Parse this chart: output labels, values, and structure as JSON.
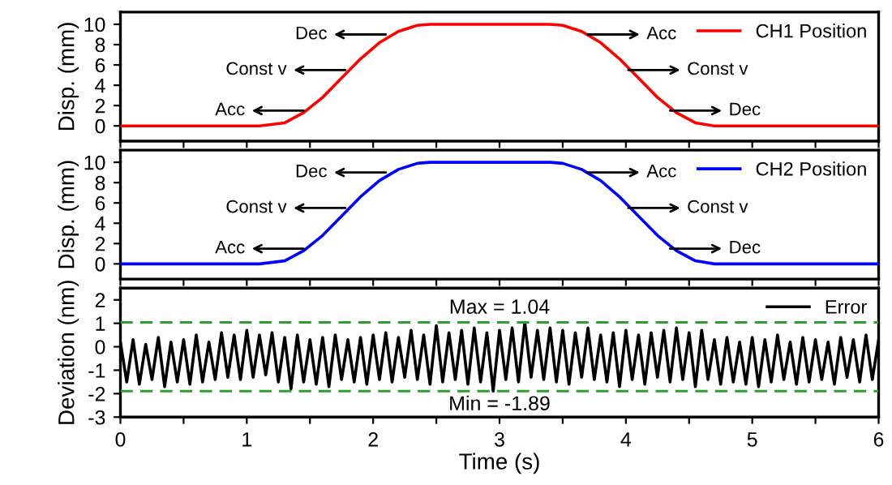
{
  "chart_data": [
    {
      "type": "line",
      "ylabel": "Disp. (mm)",
      "xlim": [
        0,
        6
      ],
      "ylim": [
        -1.5,
        11.2
      ],
      "yticks": [
        0,
        2,
        4,
        6,
        8,
        10
      ],
      "xticks": [
        0,
        {
          "value": 0.5,
          "label": null
        },
        1,
        {
          "value": 1.5,
          "label": null
        },
        2,
        {
          "value": 2.5,
          "label": null
        },
        3,
        {
          "value": 3.5,
          "label": null
        },
        4,
        {
          "value": 4.5,
          "label": null
        },
        5,
        {
          "value": 5.5,
          "label": null
        },
        6
      ],
      "tick_labels": "y",
      "legend": "top right",
      "grid": false,
      "marker": "none",
      "line_style": "solid",
      "series": [
        {
          "name": "CH1 Position",
          "color": "#ff0000",
          "x": [
            0,
            1.1,
            1.3,
            1.45,
            1.6,
            1.75,
            1.9,
            2.05,
            2.2,
            2.35,
            2.45,
            3.4,
            3.5,
            3.65,
            3.8,
            3.95,
            4.1,
            4.25,
            4.4,
            4.55,
            4.7,
            6
          ],
          "values": [
            0,
            0,
            0.3,
            1.3,
            2.8,
            4.7,
            6.6,
            8.2,
            9.3,
            9.9,
            10,
            10,
            9.9,
            9.3,
            8.2,
            6.6,
            4.7,
            2.8,
            1.3,
            0.3,
            0,
            0
          ]
        }
      ],
      "annotations": [
        {
          "text": "Acc",
          "x": 1.45,
          "y": 1.5
        },
        {
          "text": "Const v",
          "x": 1.78,
          "y": 5.5
        },
        {
          "text": "Dec",
          "x": 2.1,
          "y": 9
        },
        {
          "text": "Acc",
          "x": 3.7,
          "y": 9
        },
        {
          "text": "Const v",
          "x": 4.02,
          "y": 5.5
        },
        {
          "text": "Dec",
          "x": 4.35,
          "y": 1.5
        }
      ]
    },
    {
      "type": "line",
      "ylabel": "Disp. (mm)",
      "xlim": [
        0,
        6
      ],
      "ylim": [
        -1.5,
        11.2
      ],
      "yticks": [
        0,
        2,
        4,
        6,
        8,
        10
      ],
      "xticks": [
        0,
        {
          "value": 0.5,
          "label": null
        },
        1,
        {
          "value": 1.5,
          "label": null
        },
        2,
        {
          "value": 2.5,
          "label": null
        },
        3,
        {
          "value": 3.5,
          "label": null
        },
        4,
        {
          "value": 4.5,
          "label": null
        },
        5,
        {
          "value": 5.5,
          "label": null
        },
        6
      ],
      "tick_labels": "y",
      "legend": "top right",
      "grid": false,
      "marker": "none",
      "line_style": "solid",
      "series": [
        {
          "name": "CH2 Position",
          "color": "#0000ff",
          "x": [
            0,
            1.1,
            1.3,
            1.45,
            1.6,
            1.75,
            1.9,
            2.05,
            2.2,
            2.35,
            2.45,
            3.4,
            3.5,
            3.65,
            3.8,
            3.95,
            4.1,
            4.25,
            4.4,
            4.55,
            4.7,
            6
          ],
          "values": [
            0,
            0,
            0.3,
            1.3,
            2.8,
            4.7,
            6.6,
            8.2,
            9.3,
            9.9,
            10,
            10,
            9.9,
            9.3,
            8.2,
            6.6,
            4.7,
            2.8,
            1.3,
            0.3,
            0,
            0
          ]
        }
      ],
      "annotations": [
        {
          "text": "Acc",
          "x": 1.45,
          "y": 1.5
        },
        {
          "text": "Const v",
          "x": 1.78,
          "y": 5.5
        },
        {
          "text": "Dec",
          "x": 2.1,
          "y": 9
        },
        {
          "text": "Acc",
          "x": 3.7,
          "y": 9
        },
        {
          "text": "Const v",
          "x": 4.02,
          "y": 5.5
        },
        {
          "text": "Dec",
          "x": 4.35,
          "y": 1.5
        }
      ]
    },
    {
      "type": "line",
      "xlabel": "Time (s)",
      "ylabel": "Deviation (nm)",
      "xlim": [
        0,
        6
      ],
      "ylim": [
        -3,
        2.5
      ],
      "yticks": [
        -3,
        -2,
        -1,
        0,
        1,
        2
      ],
      "xticks": [
        0,
        {
          "value": 0.5,
          "label": null
        },
        1,
        {
          "value": 1.5,
          "label": null
        },
        2,
        {
          "value": 2.5,
          "label": null
        },
        3,
        {
          "value": 3.5,
          "label": null
        },
        4,
        {
          "value": 4.5,
          "label": null
        },
        5,
        {
          "value": 5.5,
          "label": null
        },
        6
      ],
      "legend": "top right",
      "grid": false,
      "marker": "none",
      "line_style": "solid",
      "ref_lines": [
        {
          "axis": "y",
          "value": 1.04,
          "label": "Max = 1.04",
          "color": "#2ca02c",
          "line_style": "dashed"
        },
        {
          "axis": "y",
          "value": -1.89,
          "label": "Min = -1.89",
          "color": "#2ca02c",
          "line_style": "dashed"
        }
      ],
      "series": [
        {
          "name": "Error",
          "color": "#000000",
          "x": [
            0,
            0.05,
            0.1,
            0.15,
            0.2,
            0.25,
            0.3,
            0.35,
            0.4,
            0.45,
            0.5,
            0.55,
            0.6,
            0.65,
            0.7,
            0.75,
            0.8,
            0.85,
            0.9,
            0.95,
            1,
            1.05,
            1.1,
            1.15,
            1.2,
            1.25,
            1.3,
            1.35,
            1.4,
            1.45,
            1.5,
            1.55,
            1.6,
            1.65,
            1.7,
            1.75,
            1.8,
            1.85,
            1.9,
            1.95,
            2,
            2.05,
            2.1,
            2.15,
            2.2,
            2.25,
            2.3,
            2.35,
            2.4,
            2.45,
            2.5,
            2.55,
            2.6,
            2.65,
            2.7,
            2.75,
            2.8,
            2.85,
            2.9,
            2.95,
            3,
            3.05,
            3.1,
            3.15,
            3.2,
            3.25,
            3.3,
            3.35,
            3.4,
            3.45,
            3.5,
            3.55,
            3.6,
            3.65,
            3.7,
            3.75,
            3.8,
            3.85,
            3.9,
            3.95,
            4,
            4.05,
            4.1,
            4.15,
            4.2,
            4.25,
            4.3,
            4.35,
            4.4,
            4.45,
            4.5,
            4.55,
            4.6,
            4.65,
            4.7,
            4.75,
            4.8,
            4.85,
            4.9,
            4.95,
            5,
            5.05,
            5.1,
            5.15,
            5.2,
            5.25,
            5.3,
            5.35,
            5.4,
            5.45,
            5.5,
            5.55,
            5.6,
            5.65,
            5.7,
            5.75,
            5.8,
            5.85,
            5.9,
            5.95,
            6
          ],
          "values": [
            0.2,
            -1.5,
            0.3,
            -1.6,
            0.1,
            -1.4,
            0.4,
            -1.7,
            0.2,
            -1.5,
            0.3,
            -1.6,
            0.5,
            -1.5,
            0.2,
            -1.4,
            0.6,
            -1.3,
            0.5,
            -1.4,
            0.7,
            -1.3,
            0.5,
            -1.2,
            0.6,
            -1.5,
            0.4,
            -1.8,
            0.5,
            -1.5,
            0.3,
            -1.6,
            0.4,
            -1.7,
            0.5,
            -1.4,
            0.3,
            -1.5,
            0.4,
            -1.6,
            0.5,
            -1.4,
            0.6,
            -1.5,
            0.4,
            -1.3,
            0.7,
            -1.4,
            0.5,
            -1.6,
            0.9,
            -1.5,
            0.6,
            -1.4,
            0.7,
            -1.6,
            0.8,
            -1.5,
            0.6,
            -1.89,
            0.7,
            -1.4,
            0.8,
            -1.5,
            1.04,
            -1.3,
            0.7,
            -1.4,
            0.8,
            -1.5,
            0.7,
            -1.6,
            0.6,
            -1.3,
            0.8,
            -1.4,
            0.5,
            -1.5,
            0.6,
            -1.7,
            0.7,
            -1.4,
            0.5,
            -1.6,
            0.6,
            -1.3,
            0.7,
            -1.5,
            0.8,
            -1.4,
            0.6,
            -1.7,
            0.7,
            -1.4,
            0.3,
            -1.6,
            0.4,
            -1.5,
            0.2,
            -1.6,
            0.4,
            -1.7,
            0.3,
            -1.5,
            0.5,
            -1.4,
            0.2,
            -1.6,
            0.4,
            -1.5,
            0.3,
            -1.4,
            0.2,
            -1.6,
            0.4,
            -1.3,
            0.3,
            -1.5,
            0.5,
            -1.4,
            0.3
          ]
        }
      ]
    }
  ]
}
